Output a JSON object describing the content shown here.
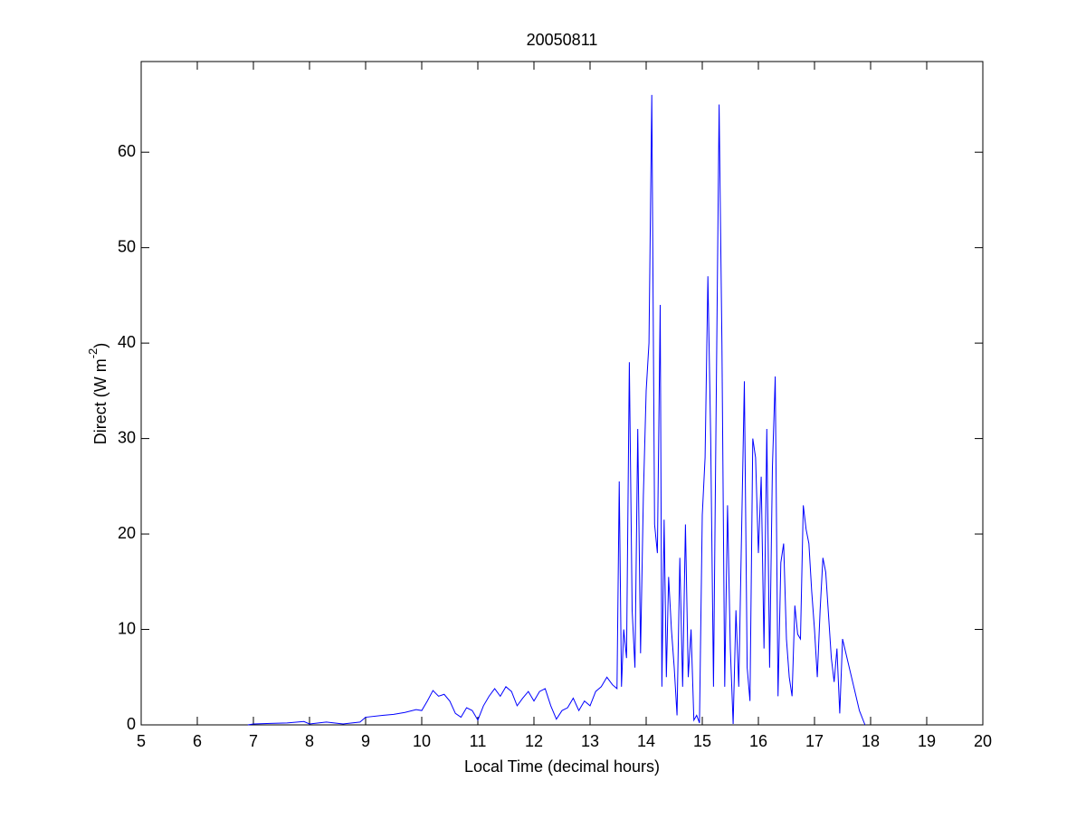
{
  "chart_data": {
    "type": "line",
    "title": "20050811",
    "xlabel": "Local Time (decimal hours)",
    "ylabel_parts": [
      "Direct (W m",
      "-2",
      ")"
    ],
    "xlim": [
      5,
      20
    ],
    "xticks": [
      5,
      6,
      7,
      8,
      9,
      10,
      11,
      12,
      13,
      14,
      15,
      16,
      17,
      18,
      19,
      20
    ],
    "ylim": [
      0,
      69.5
    ],
    "yticks": [
      0,
      10,
      20,
      30,
      40,
      50,
      60
    ],
    "grid": false,
    "series": [
      {
        "color": "#0000ff",
        "x": [
          6.9,
          7.0,
          7.3,
          7.6,
          7.9,
          8.0,
          8.3,
          8.6,
          8.9,
          9.0,
          9.3,
          9.5,
          9.7,
          9.9,
          10.0,
          10.1,
          10.2,
          10.3,
          10.4,
          10.5,
          10.6,
          10.7,
          10.8,
          10.9,
          11.0,
          11.1,
          11.2,
          11.3,
          11.4,
          11.5,
          11.6,
          11.7,
          11.8,
          11.9,
          12.0,
          12.1,
          12.2,
          12.3,
          12.4,
          12.5,
          12.6,
          12.7,
          12.8,
          12.9,
          13.0,
          13.1,
          13.2,
          13.3,
          13.4,
          13.48,
          13.52,
          13.56,
          13.6,
          13.65,
          13.7,
          13.75,
          13.8,
          13.85,
          13.9,
          13.95,
          14.0,
          14.05,
          14.1,
          14.15,
          14.2,
          14.25,
          14.28,
          14.32,
          14.36,
          14.4,
          14.45,
          14.5,
          14.55,
          14.6,
          14.65,
          14.7,
          14.75,
          14.8,
          14.85,
          14.9,
          14.95,
          15.0,
          15.05,
          15.1,
          15.15,
          15.2,
          15.25,
          15.3,
          15.35,
          15.4,
          15.45,
          15.5,
          15.55,
          15.6,
          15.65,
          15.7,
          15.75,
          15.8,
          15.85,
          15.9,
          15.95,
          16.0,
          16.05,
          16.1,
          16.15,
          16.2,
          16.25,
          16.3,
          16.35,
          16.4,
          16.45,
          16.5,
          16.55,
          16.6,
          16.65,
          16.7,
          16.75,
          16.8,
          16.85,
          16.9,
          16.95,
          17.0,
          17.05,
          17.1,
          17.15,
          17.2,
          17.3,
          17.35,
          17.4,
          17.45,
          17.5,
          17.6,
          17.7,
          17.8,
          17.9
        ],
        "values": [
          0,
          0.1,
          0.15,
          0.2,
          0.35,
          0.1,
          0.3,
          0.1,
          0.3,
          0.8,
          1.0,
          1.1,
          1.3,
          1.6,
          1.5,
          2.5,
          3.6,
          3.0,
          3.2,
          2.5,
          1.2,
          0.8,
          1.8,
          1.5,
          0.5,
          2.0,
          3.0,
          3.8,
          3.0,
          4.0,
          3.5,
          2.0,
          2.8,
          3.5,
          2.5,
          3.5,
          3.8,
          2.0,
          0.6,
          1.5,
          1.8,
          2.8,
          1.5,
          2.5,
          2.0,
          3.5,
          4.0,
          5.0,
          4.2,
          3.8,
          25.5,
          4,
          10,
          7,
          38,
          12,
          6,
          31,
          7.5,
          24,
          35,
          40,
          66,
          21,
          18,
          44,
          4,
          21.5,
          5,
          15.5,
          10,
          6,
          1,
          17.5,
          4,
          21,
          5,
          10,
          0.5,
          1,
          0.2,
          22,
          28,
          47,
          30,
          4,
          35,
          65,
          40,
          4,
          23,
          8,
          0.1,
          12,
          4,
          20,
          36,
          6,
          2.5,
          30,
          28,
          18,
          26,
          8,
          31,
          6,
          27,
          36.5,
          3,
          17,
          19,
          9,
          5,
          3,
          12.5,
          9.5,
          9,
          23,
          20.5,
          19,
          14,
          10,
          5,
          12,
          17.5,
          16,
          7,
          4.5,
          8,
          1.2,
          9,
          6.5,
          4,
          1.5,
          0
        ]
      }
    ]
  }
}
